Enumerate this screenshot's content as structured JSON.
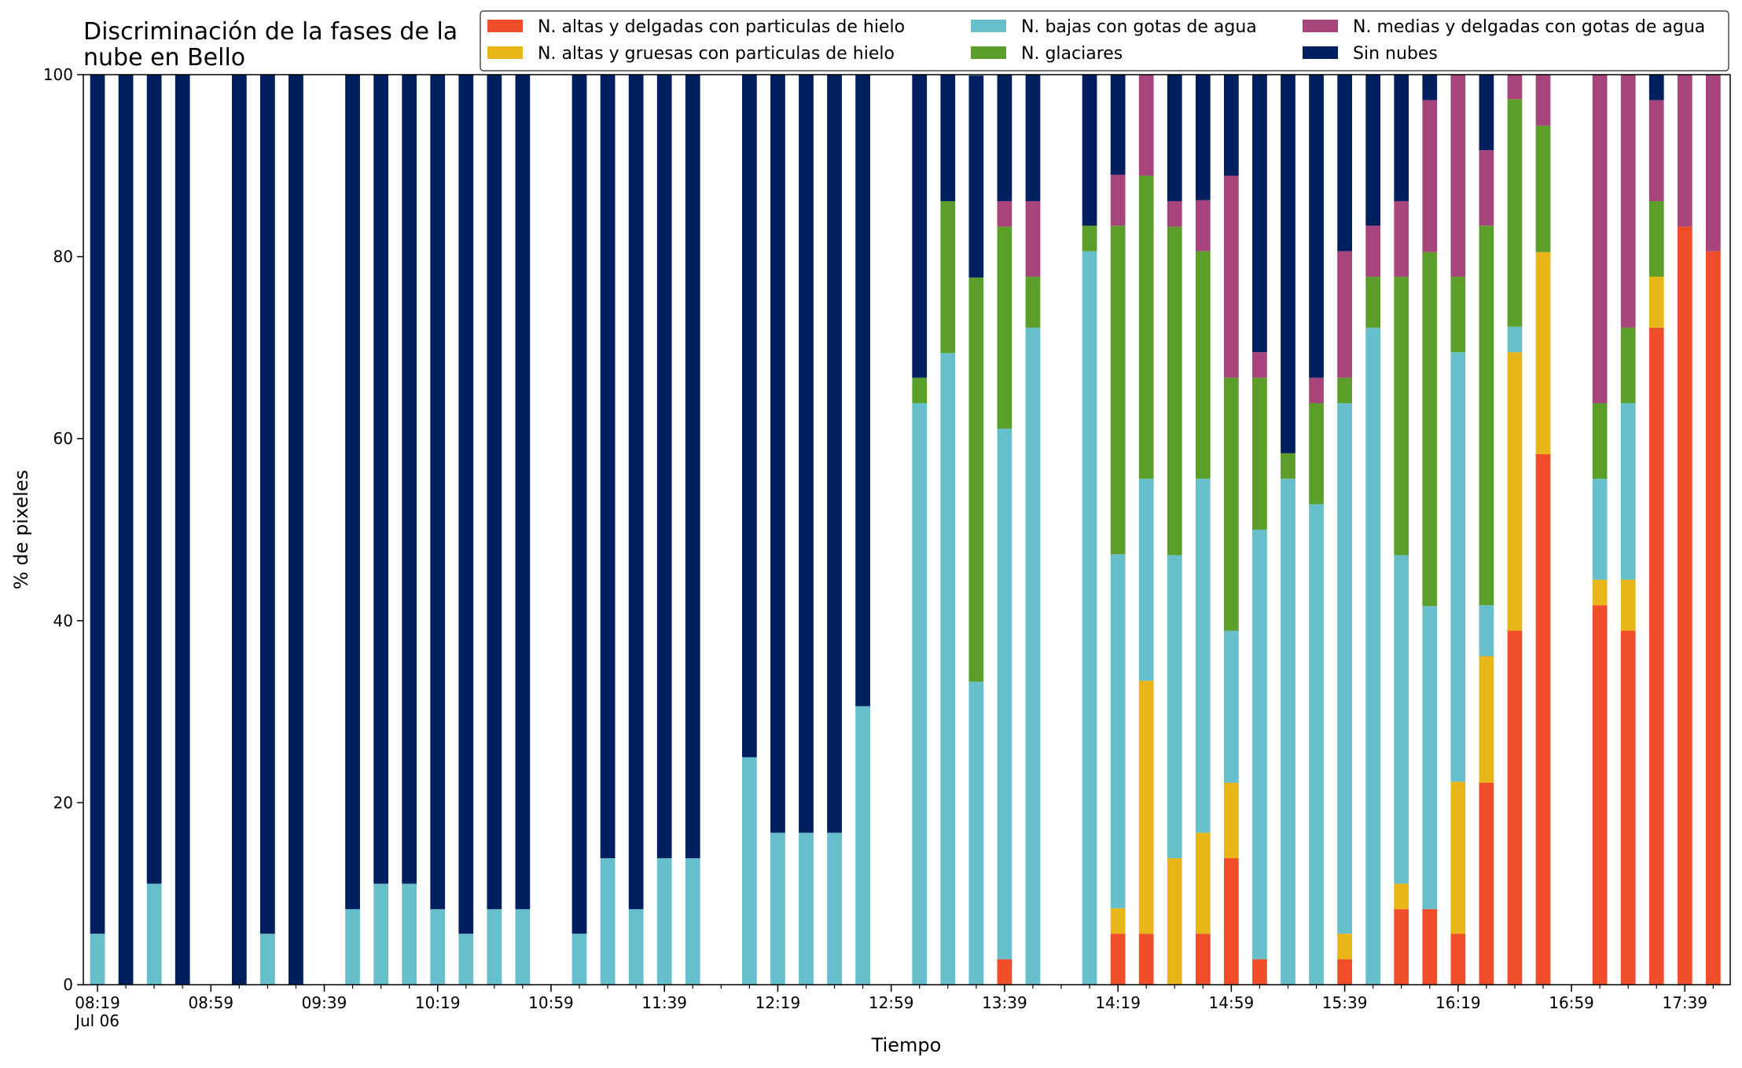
{
  "chart_data": {
    "type": "bar",
    "stacked": true,
    "title": [
      "Discriminación de la fases de la",
      "nube en Bello"
    ],
    "xlabel": "Tiempo",
    "ylabel": "% de pixeles",
    "ylim": [
      0,
      100
    ],
    "yticks": [
      0,
      20,
      40,
      60,
      80,
      100
    ],
    "xlim_minutes": [
      "08:14",
      "17:55"
    ],
    "xticks": [
      {
        "time": "08:19",
        "label": "08:19",
        "sublabel": "Jul 06"
      },
      {
        "time": "08:59",
        "label": "08:59"
      },
      {
        "time": "09:39",
        "label": "09:39"
      },
      {
        "time": "10:19",
        "label": "10:19"
      },
      {
        "time": "10:59",
        "label": "10:59"
      },
      {
        "time": "11:39",
        "label": "11:39"
      },
      {
        "time": "12:19",
        "label": "12:19"
      },
      {
        "time": "12:59",
        "label": "12:59"
      },
      {
        "time": "13:39",
        "label": "13:39"
      },
      {
        "time": "14:19",
        "label": "14:19"
      },
      {
        "time": "14:59",
        "label": "14:59"
      },
      {
        "time": "15:39",
        "label": "15:39"
      },
      {
        "time": "16:19",
        "label": "16:19"
      },
      {
        "time": "16:59",
        "label": "16:59"
      },
      {
        "time": "17:39",
        "label": "17:39"
      }
    ],
    "grid": false,
    "legend_position": "top",
    "series": [
      {
        "key": "altas_delgadas",
        "name": "N. altas y delgadas con particulas de hielo",
        "color": "#f04e2a"
      },
      {
        "key": "altas_gruesas",
        "name": "N. altas y gruesas con particulas de hielo",
        "color": "#e8b619"
      },
      {
        "key": "bajas",
        "name": "N. bajas con gotas de agua",
        "color": "#67bfcb"
      },
      {
        "key": "glaciares",
        "name": "N. glaciares",
        "color": "#5c9e2a"
      },
      {
        "key": "medias",
        "name": "N. medias y delgadas con gotas de agua",
        "color": "#a6447b"
      },
      {
        "key": "sin_nubes",
        "name": "Sin nubes",
        "color": "#001f5e"
      }
    ],
    "stack_order": [
      "altas_delgadas",
      "altas_gruesas",
      "bajas",
      "glaciares",
      "medias",
      "sin_nubes"
    ],
    "bars": [
      {
        "time": "08:19",
        "values": [
          0,
          0,
          5.6,
          0,
          0,
          94.4
        ]
      },
      {
        "time": "08:29",
        "values": [
          0,
          0,
          0,
          0,
          0,
          100
        ]
      },
      {
        "time": "08:39",
        "values": [
          0,
          0,
          11.1,
          0,
          0,
          88.9
        ]
      },
      {
        "time": "08:49",
        "values": [
          0,
          0,
          0,
          0,
          0,
          100
        ]
      },
      {
        "time": "09:09",
        "values": [
          0,
          0,
          0,
          0,
          0,
          100
        ]
      },
      {
        "time": "09:19",
        "values": [
          0,
          0,
          5.6,
          0,
          0,
          94.4
        ]
      },
      {
        "time": "09:29",
        "values": [
          0,
          0,
          0,
          0,
          0,
          100
        ]
      },
      {
        "time": "09:49",
        "values": [
          0,
          0,
          8.3,
          0,
          0,
          91.7
        ]
      },
      {
        "time": "09:59",
        "values": [
          0,
          0,
          11.1,
          0,
          0,
          88.9
        ]
      },
      {
        "time": "10:09",
        "values": [
          0,
          0,
          11.1,
          0,
          0,
          88.9
        ]
      },
      {
        "time": "10:19",
        "values": [
          0,
          0,
          8.3,
          0,
          0,
          91.7
        ]
      },
      {
        "time": "10:29",
        "values": [
          0,
          0,
          5.6,
          0,
          0,
          94.4
        ]
      },
      {
        "time": "10:39",
        "values": [
          0,
          0,
          8.3,
          0,
          0,
          91.7
        ]
      },
      {
        "time": "10:49",
        "values": [
          0,
          0,
          8.3,
          0,
          0,
          91.7
        ]
      },
      {
        "time": "11:09",
        "values": [
          0,
          0,
          5.6,
          0,
          0,
          94.4
        ]
      },
      {
        "time": "11:19",
        "values": [
          0,
          0,
          13.9,
          0,
          0,
          86.1
        ]
      },
      {
        "time": "11:29",
        "values": [
          0,
          0,
          8.3,
          0,
          0,
          91.7
        ]
      },
      {
        "time": "11:39",
        "values": [
          0,
          0,
          13.9,
          0,
          0,
          86.1
        ]
      },
      {
        "time": "11:49",
        "values": [
          0,
          0,
          13.9,
          0,
          0,
          86.1
        ]
      },
      {
        "time": "12:09",
        "values": [
          0,
          0,
          25,
          0,
          0,
          75
        ]
      },
      {
        "time": "12:19",
        "values": [
          0,
          0,
          16.7,
          0,
          0,
          83.3
        ]
      },
      {
        "time": "12:29",
        "values": [
          0,
          0,
          16.7,
          0,
          0,
          83.3
        ]
      },
      {
        "time": "12:39",
        "values": [
          0,
          0,
          16.7,
          0,
          0,
          83.3
        ]
      },
      {
        "time": "12:49",
        "values": [
          0,
          0,
          30.6,
          0,
          0,
          69.4
        ]
      },
      {
        "time": "13:09",
        "values": [
          0,
          0,
          63.9,
          2.8,
          0,
          33.3
        ]
      },
      {
        "time": "13:19",
        "values": [
          0,
          0,
          69.4,
          16.7,
          0,
          13.9
        ]
      },
      {
        "time": "13:29",
        "values": [
          0,
          0,
          33.3,
          44.4,
          0,
          22.2
        ]
      },
      {
        "time": "13:39",
        "values": [
          2.8,
          0,
          58.3,
          22.2,
          2.8,
          13.9
        ]
      },
      {
        "time": "13:49",
        "values": [
          0,
          0,
          72.2,
          5.6,
          8.3,
          13.9
        ]
      },
      {
        "time": "14:09",
        "values": [
          0,
          0,
          80.6,
          2.8,
          0,
          16.6
        ]
      },
      {
        "time": "14:19",
        "values": [
          5.6,
          2.8,
          38.9,
          36.1,
          5.6,
          11.0
        ]
      },
      {
        "time": "14:29",
        "values": [
          5.6,
          27.8,
          22.2,
          33.3,
          11.1,
          0
        ]
      },
      {
        "time": "14:39",
        "values": [
          0,
          13.9,
          33.3,
          36.1,
          2.8,
          13.9
        ]
      },
      {
        "time": "14:49",
        "values": [
          5.6,
          11.1,
          38.9,
          25,
          5.6,
          13.8
        ]
      },
      {
        "time": "14:59",
        "values": [
          13.9,
          8.3,
          16.7,
          27.8,
          22.2,
          11.1
        ]
      },
      {
        "time": "15:09",
        "values": [
          2.8,
          0,
          47.2,
          16.7,
          2.8,
          30.5
        ]
      },
      {
        "time": "15:19",
        "values": [
          0,
          0,
          55.6,
          2.8,
          0,
          41.6
        ]
      },
      {
        "time": "15:29",
        "values": [
          0,
          0,
          52.8,
          11.1,
          2.8,
          33.3
        ]
      },
      {
        "time": "15:39",
        "values": [
          2.8,
          2.8,
          58.3,
          2.8,
          13.9,
          19.4
        ]
      },
      {
        "time": "15:49",
        "values": [
          0,
          0,
          72.2,
          5.6,
          5.6,
          16.6
        ]
      },
      {
        "time": "15:59",
        "values": [
          8.3,
          2.8,
          36.1,
          30.6,
          8.3,
          13.9
        ]
      },
      {
        "time": "16:09",
        "values": [
          8.3,
          0,
          33.3,
          38.9,
          16.7,
          2.8
        ]
      },
      {
        "time": "16:19",
        "values": [
          5.6,
          16.7,
          47.2,
          8.3,
          22.2,
          0
        ]
      },
      {
        "time": "16:29",
        "values": [
          22.2,
          13.9,
          5.6,
          41.7,
          8.3,
          8.3
        ]
      },
      {
        "time": "16:39",
        "values": [
          38.9,
          30.6,
          2.8,
          25,
          2.7,
          0
        ]
      },
      {
        "time": "16:49",
        "values": [
          58.3,
          22.2,
          0,
          13.9,
          5.6,
          0
        ]
      },
      {
        "time": "17:09",
        "values": [
          41.7,
          2.8,
          11.1,
          8.3,
          36.1,
          0
        ]
      },
      {
        "time": "17:19",
        "values": [
          38.9,
          5.6,
          19.4,
          8.3,
          27.8,
          0
        ]
      },
      {
        "time": "17:29",
        "values": [
          72.2,
          5.6,
          0,
          8.3,
          11.1,
          2.8
        ]
      },
      {
        "time": "17:39",
        "values": [
          83.3,
          0,
          0,
          0,
          16.7,
          0
        ]
      },
      {
        "time": "17:49",
        "values": [
          80.6,
          0,
          0,
          0,
          19.4,
          0
        ]
      }
    ]
  }
}
